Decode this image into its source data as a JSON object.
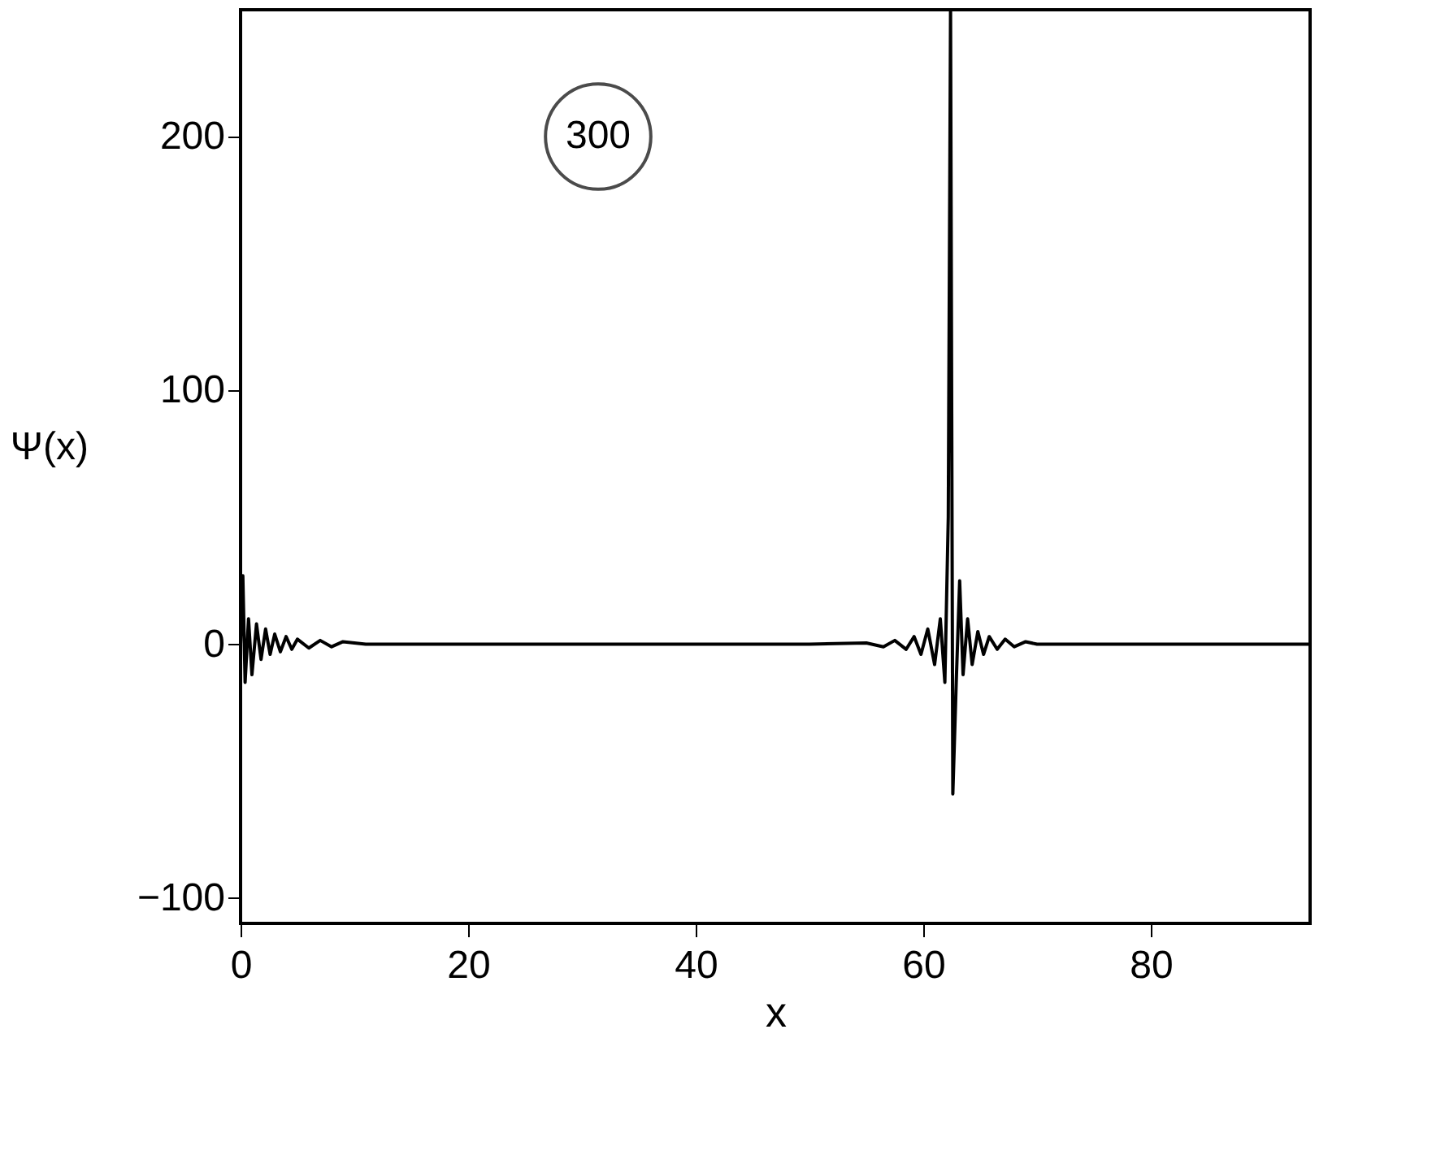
{
  "chart_data": {
    "type": "line",
    "xlabel": "x",
    "ylabel": "Ψ(x)",
    "annotations": [
      "300"
    ],
    "xlim": [
      0,
      94
    ],
    "xticks": [
      0,
      20,
      40,
      60,
      80
    ],
    "ylim": [
      -110,
      250
    ],
    "yticks": [
      -100,
      0,
      100,
      200
    ],
    "grid": false,
    "marker": "none",
    "line_style": "solid",
    "series": [
      {
        "color": "#000000",
        "x": [
          0,
          0.2,
          0.4,
          0.7,
          1.0,
          1.4,
          1.8,
          2.2,
          2.6,
          3.0,
          3.5,
          4.0,
          4.5,
          5.0,
          6.0,
          7.0,
          8.0,
          9.0,
          11,
          20,
          30,
          40,
          50,
          55,
          56.5,
          57.5,
          58.5,
          59.2,
          59.8,
          60.4,
          61.0,
          61.5,
          61.9,
          62.2,
          62.4,
          62.6,
          62.9,
          63.2,
          63.5,
          63.9,
          64.3,
          64.8,
          65.3,
          65.8,
          66.5,
          67.2,
          68,
          69,
          70,
          80,
          94
        ],
        "values": [
          0,
          27,
          -15,
          10,
          -12,
          8,
          -6,
          6,
          -4,
          4,
          -3,
          3,
          -2,
          2,
          -1.5,
          1.5,
          -1,
          1,
          0,
          0,
          0,
          0,
          0,
          0.5,
          -1,
          1.5,
          -2,
          3,
          -4,
          6,
          -8,
          10,
          -15,
          50,
          250,
          -59,
          -15,
          25,
          -12,
          10,
          -8,
          5,
          -4,
          3,
          -2,
          2,
          -1,
          1,
          0,
          0,
          0
        ]
      }
    ]
  }
}
